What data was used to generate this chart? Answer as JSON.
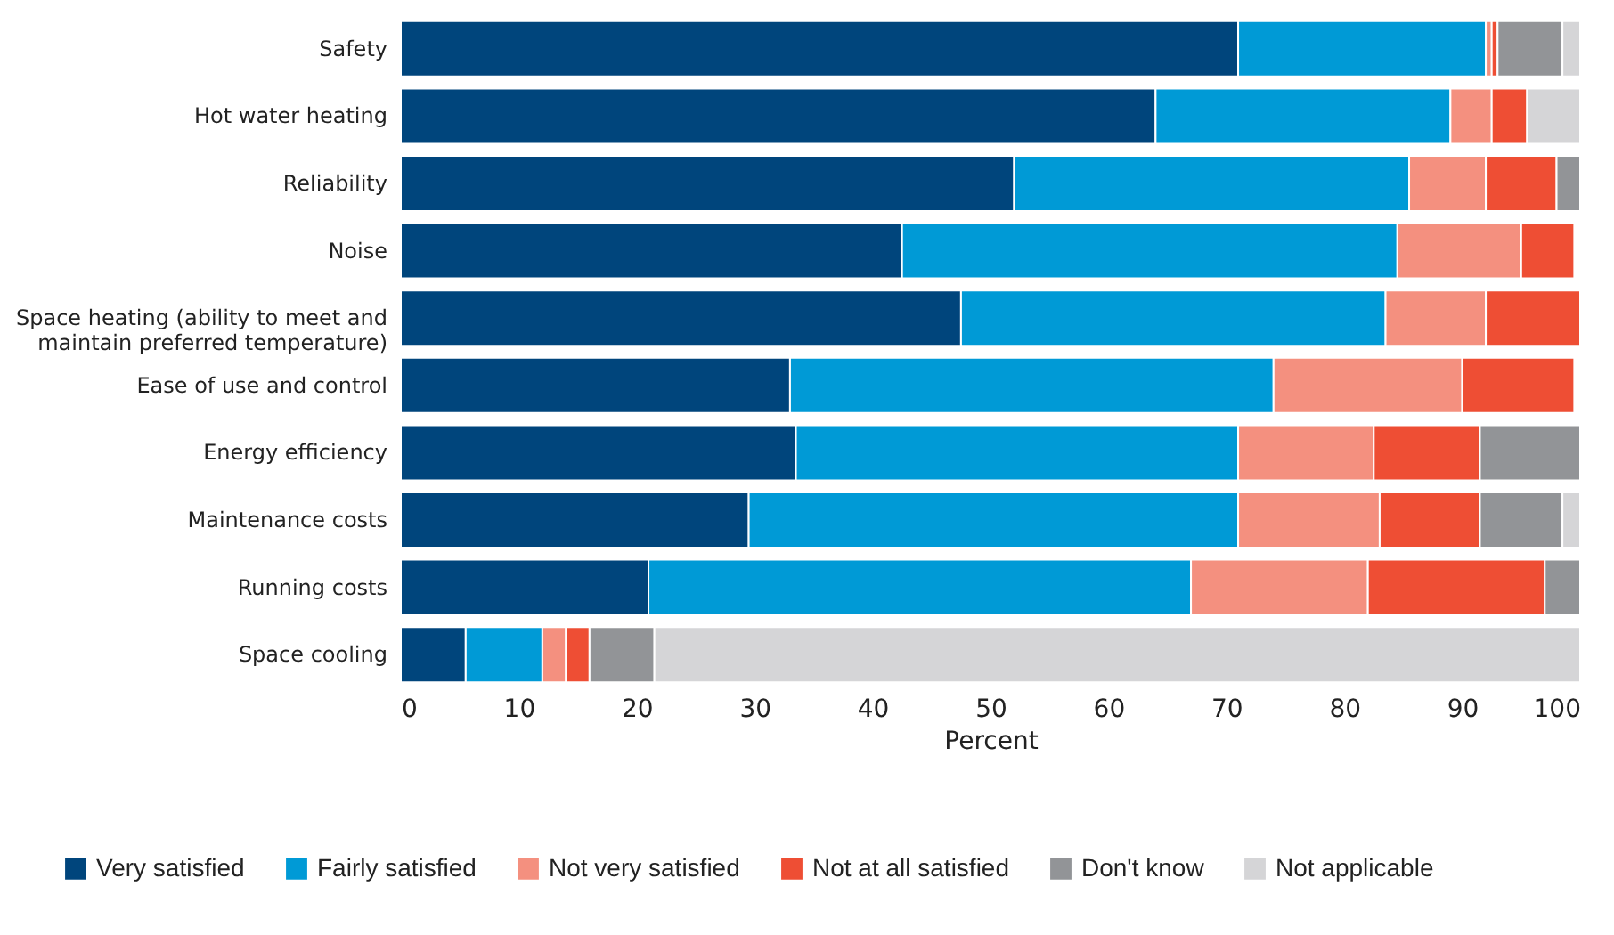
{
  "chart_data": {
    "type": "bar",
    "orientation": "horizontal",
    "stacked": true,
    "xlabel": "Percent",
    "categories": [
      "Safety",
      "Hot water heating",
      "Reliability",
      "Noise",
      "Space heating (ability to meet and maintain preferred temperature)",
      "Ease of use and control",
      "Energy efficiency",
      "Maintenance costs",
      "Running costs",
      "Space cooling"
    ],
    "series": [
      {
        "name": "Very satisfied",
        "color": "#00457c",
        "values": [
          71,
          64,
          52,
          42.5,
          47.5,
          33,
          33.5,
          29.5,
          21,
          5.5
        ]
      },
      {
        "name": "Fairly satisfied",
        "color": "#009ad6",
        "values": [
          21,
          25,
          33.5,
          42,
          36,
          41,
          37.5,
          41.5,
          46,
          6.5
        ]
      },
      {
        "name": "Not very satisfied",
        "color": "#f4907f",
        "values": [
          0.5,
          3.5,
          6.5,
          10.5,
          8.5,
          16,
          11.5,
          12,
          15,
          2
        ]
      },
      {
        "name": "Not at all satisfied",
        "color": "#ee4e34",
        "values": [
          0.5,
          3,
          6,
          4.5,
          8,
          9.5,
          9,
          8.5,
          15,
          2
        ]
      },
      {
        "name": "Don't know",
        "color": "#929497",
        "values": [
          5.5,
          null,
          2,
          null,
          null,
          null,
          8.5,
          7,
          3,
          5.5
        ]
      },
      {
        "name": "Not applicable",
        "color": "#d5d5d7",
        "values": [
          1.5,
          4.5,
          null,
          null,
          null,
          null,
          null,
          1.5,
          null,
          78.5
        ]
      }
    ],
    "xlim": [
      0,
      100
    ],
    "xticks": [
      0,
      10,
      20,
      30,
      40,
      50,
      60,
      70,
      80,
      90,
      100
    ],
    "grid": false,
    "legend": "bottom"
  }
}
